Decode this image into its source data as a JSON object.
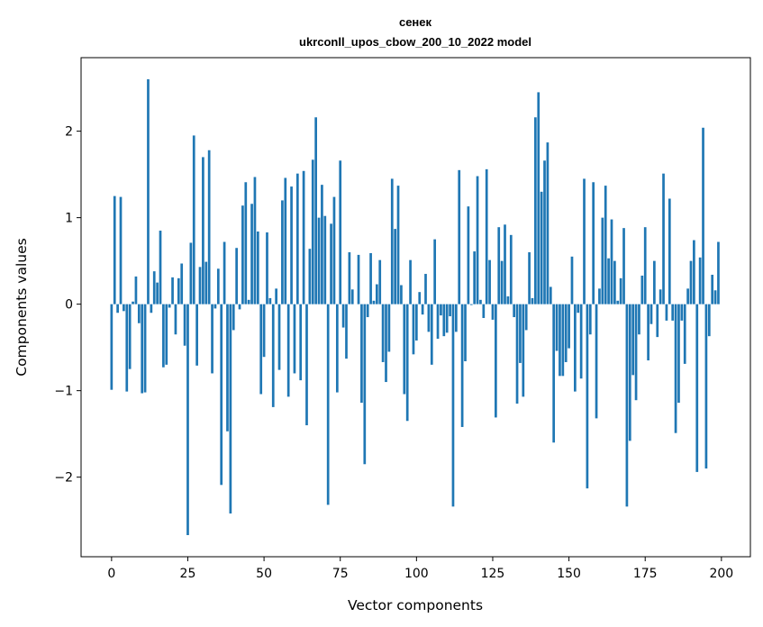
{
  "chart_data": {
    "type": "bar",
    "title_line1": "сенек",
    "title_line2": "ukrconll_upos_cbow_200_10_2022 model",
    "xlabel": "Vector components",
    "ylabel": "Components values",
    "xlim": [
      -10,
      209.5
    ],
    "ylim": [
      -2.92,
      2.85
    ],
    "xticks": [
      0,
      25,
      50,
      75,
      100,
      125,
      150,
      175,
      200
    ],
    "yticks": [
      -2,
      -1,
      0,
      1,
      2
    ],
    "ytick_labels": [
      "−2",
      "−1",
      "0",
      "1",
      "2"
    ],
    "xtick_labels": [
      "0",
      "25",
      "50",
      "75",
      "100",
      "125",
      "150",
      "175",
      "200"
    ],
    "bar_color": "#1f77b4",
    "grid": false,
    "values": [
      -0.99,
      1.25,
      -0.1,
      1.24,
      -0.08,
      -1.01,
      -0.75,
      0.03,
      0.32,
      -0.22,
      -1.03,
      -1.02,
      2.6,
      -0.1,
      0.38,
      0.25,
      0.85,
      -0.73,
      -0.7,
      -0.04,
      0.31,
      -0.35,
      0.3,
      0.47,
      -0.48,
      -2.67,
      0.71,
      1.95,
      -0.71,
      0.43,
      1.7,
      0.49,
      1.78,
      -0.8,
      -0.05,
      0.41,
      -2.09,
      0.72,
      -1.47,
      -2.42,
      -0.3,
      0.65,
      -0.06,
      1.14,
      1.41,
      0.05,
      1.16,
      1.47,
      0.84,
      -1.04,
      -0.61,
      0.83,
      0.07,
      -1.19,
      0.18,
      -0.76,
      1.2,
      1.46,
      -1.07,
      1.36,
      -0.8,
      1.51,
      -0.88,
      1.54,
      -1.4,
      0.64,
      1.67,
      2.16,
      1.0,
      1.38,
      1.02,
      -2.32,
      0.93,
      1.24,
      -1.02,
      1.66,
      -0.27,
      -0.63,
      0.6,
      0.17,
      0.0,
      0.57,
      -1.14,
      -1.85,
      -0.15,
      0.59,
      0.04,
      0.23,
      0.51,
      -0.67,
      -0.9,
      -0.55,
      1.45,
      0.87,
      1.37,
      0.22,
      -1.04,
      -1.35,
      0.51,
      -0.58,
      -0.42,
      0.14,
      -0.12,
      0.35,
      -0.32,
      -0.7,
      0.75,
      -0.4,
      -0.13,
      -0.37,
      -0.33,
      -0.14,
      -2.34,
      -0.32,
      1.55,
      -1.42,
      -0.66,
      1.13,
      -0.01,
      0.61,
      1.48,
      0.05,
      -0.16,
      1.56,
      0.51,
      -0.18,
      -1.31,
      0.89,
      0.5,
      0.92,
      0.09,
      0.8,
      -0.15,
      -1.15,
      -0.68,
      -1.07,
      -0.3,
      0.6,
      0.07,
      2.16,
      2.45,
      1.3,
      1.66,
      1.87,
      0.2,
      -1.6,
      -0.54,
      -0.83,
      -0.83,
      -0.67,
      -0.51,
      0.55,
      -1.01,
      -0.1,
      -0.86,
      1.45,
      -2.13,
      -0.35,
      1.41,
      -1.32,
      0.18,
      1.0,
      1.37,
      0.53,
      0.98,
      0.5,
      0.04,
      0.3,
      0.88,
      -2.34,
      -1.58,
      -0.82,
      -1.11,
      -0.35,
      0.33,
      0.89,
      -0.65,
      -0.23,
      0.5,
      -0.38,
      0.17,
      1.51,
      -0.19,
      1.22,
      -0.19,
      -1.49,
      -1.14,
      -0.19,
      -0.69,
      0.18,
      0.5,
      0.74,
      -1.94,
      0.54,
      2.04,
      -1.9,
      -0.37,
      0.34,
      0.16,
      0.72
    ]
  }
}
